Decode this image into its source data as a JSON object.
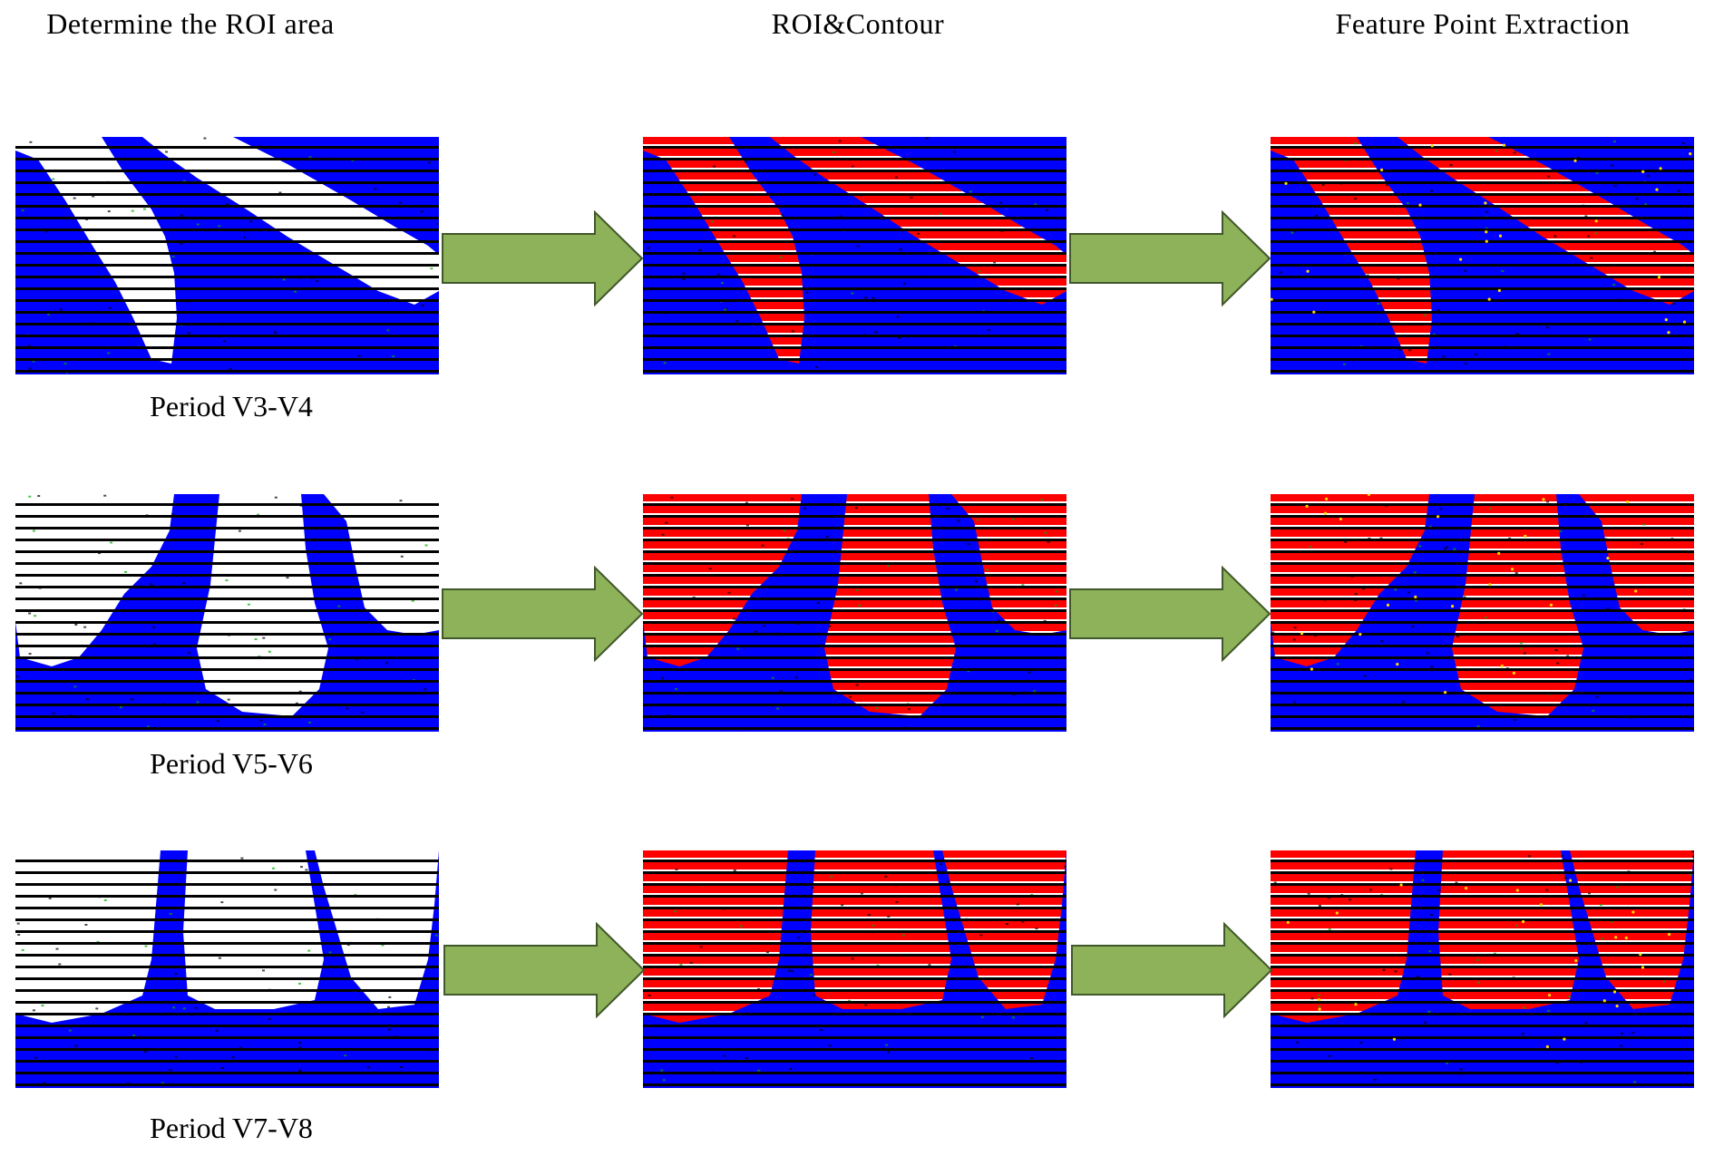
{
  "columns": [
    {
      "title": "Determine the ROI area"
    },
    {
      "title": "ROI&Contour"
    },
    {
      "title": "Feature Point Extraction"
    }
  ],
  "periods": [
    {
      "label": "Period V3-V4"
    },
    {
      "label": "Period V5-V6"
    },
    {
      "label": "Period V7-V8"
    }
  ],
  "colors": {
    "background": "#0000ff",
    "roi": "#ff0000",
    "plant": "#ffffff",
    "stripe": "#000000",
    "arrow_fill": "#8db25a",
    "arrow_stroke": "#41582a"
  }
}
